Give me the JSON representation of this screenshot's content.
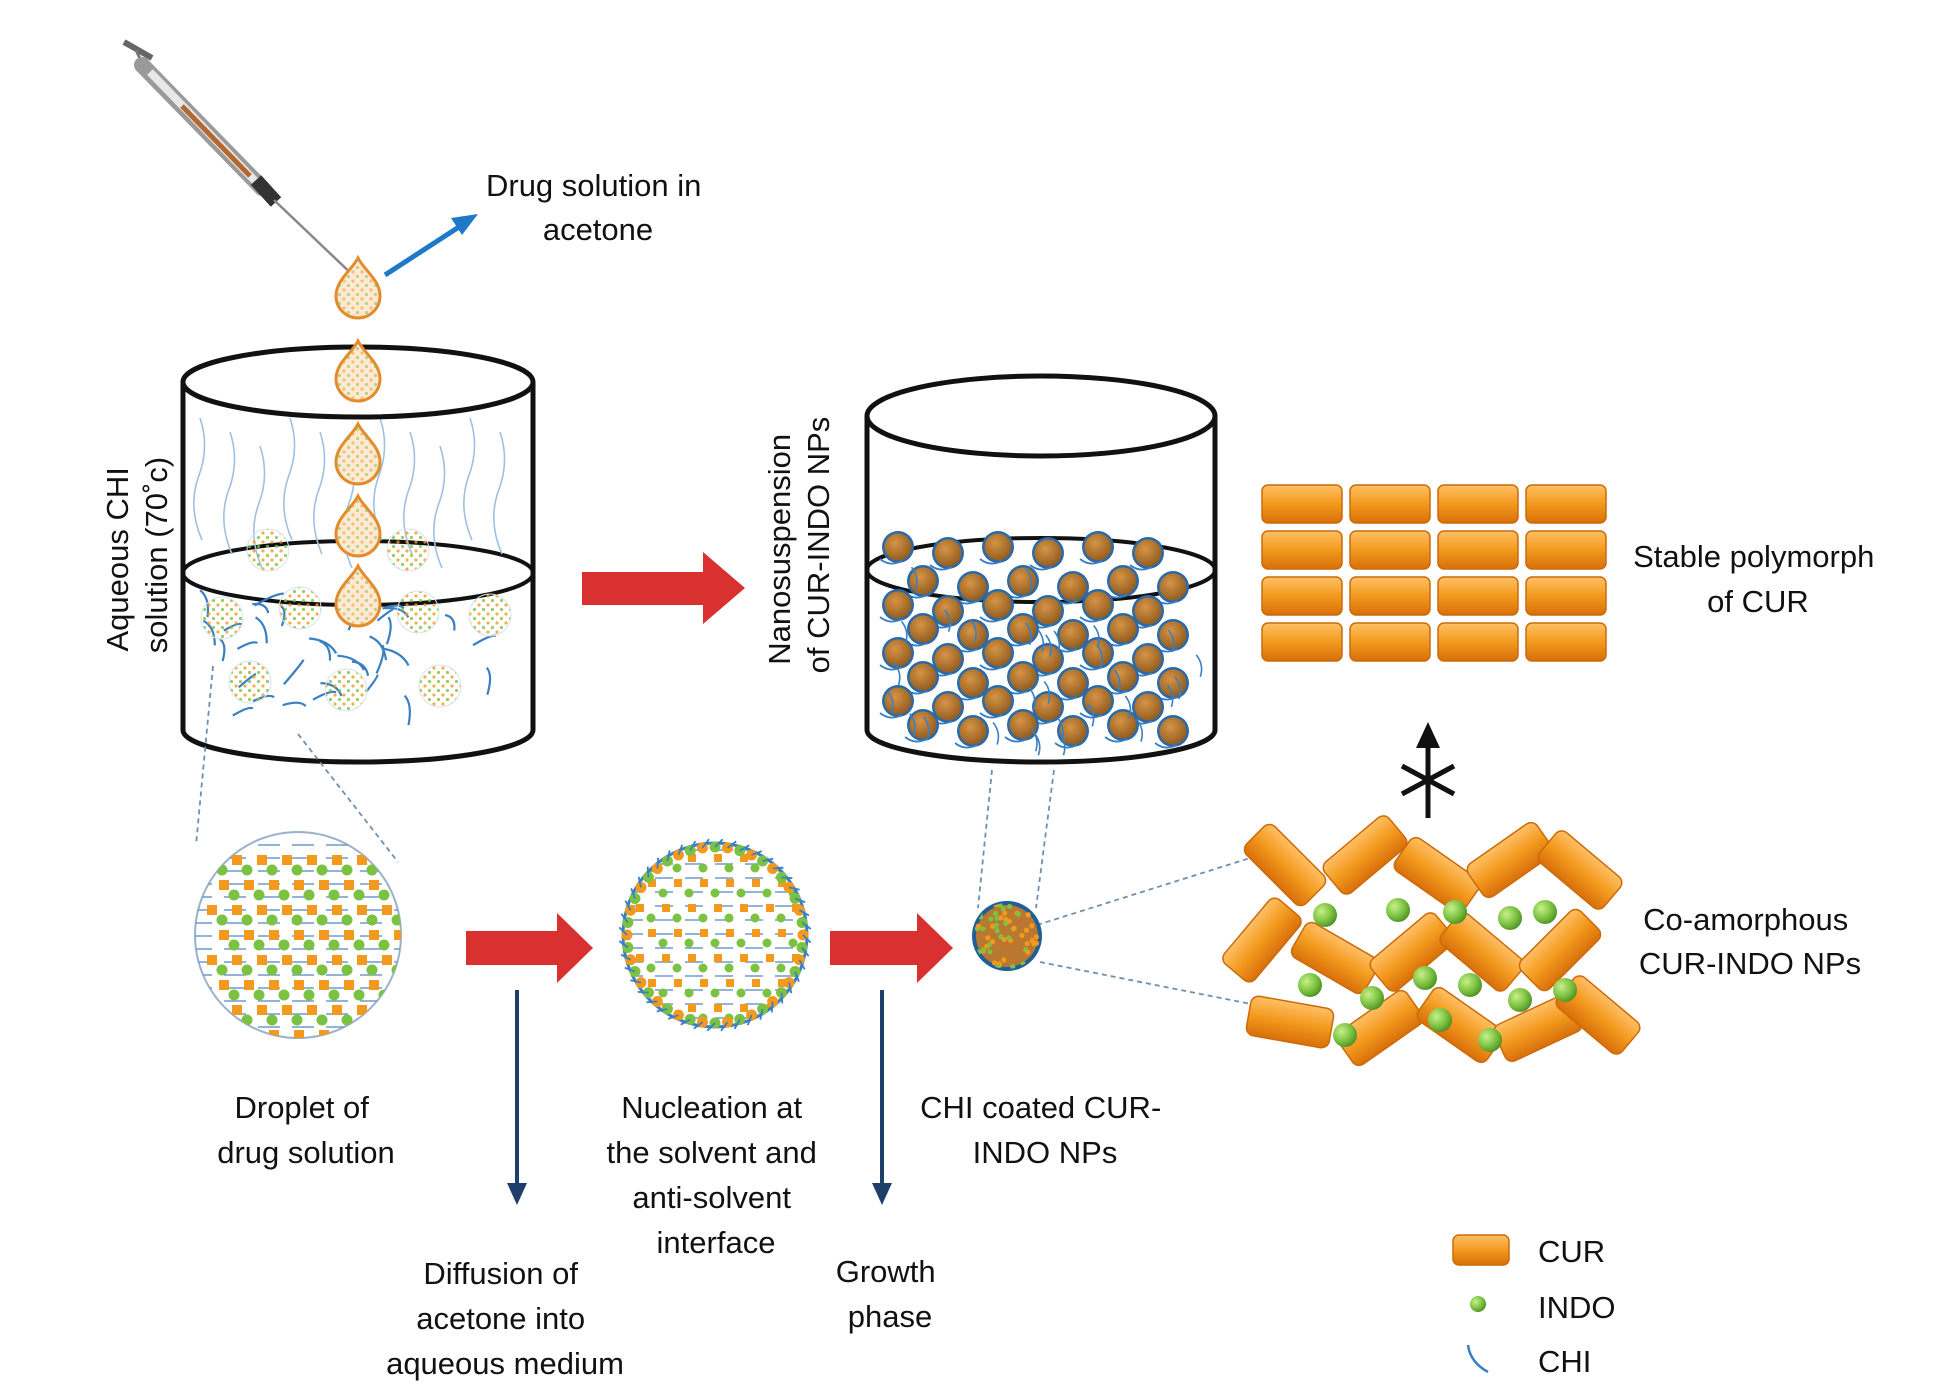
{
  "labels": {
    "drug_solution": [
      "Drug solution in",
      "acetone"
    ],
    "aqueous_chi": [
      "Aqueous CHI",
      "solution (70˚c)"
    ],
    "nanosuspension": [
      "Nanosuspension",
      "of CUR-INDO NPs"
    ],
    "stable_polymorph": [
      "Stable polymorph",
      "of CUR"
    ],
    "co_amorphous": [
      "Co-amorphous",
      "CUR-INDO NPs"
    ],
    "droplet": [
      "Droplet of",
      "drug solution"
    ],
    "nucleation": [
      "Nucleation at",
      "the solvent and",
      "anti-solvent",
      "interface"
    ],
    "chi_coated": [
      "CHI coated CUR-",
      "INDO NPs"
    ],
    "diffusion": [
      "Diffusion of",
      "acetone into",
      "aqueous medium"
    ],
    "growth": [
      "Growth",
      "phase"
    ]
  },
  "legend": [
    {
      "key": "cur",
      "label": "CUR"
    },
    {
      "key": "indo",
      "label": "INDO"
    },
    {
      "key": "chi",
      "label": "CHI"
    }
  ],
  "colors": {
    "cur": "#f39a1e",
    "cur_dark": "#d26f0c",
    "indo": "#7cc242",
    "chi": "#3a7fc1",
    "red_arrow": "#d9312f",
    "blue_arrow": "#1f78c8",
    "navy_arrow": "#1f3f6b",
    "np_fill": "#b9772d"
  },
  "icons": {
    "syringe": "syringe-icon",
    "blocked_transition": "asterisk-icon"
  }
}
